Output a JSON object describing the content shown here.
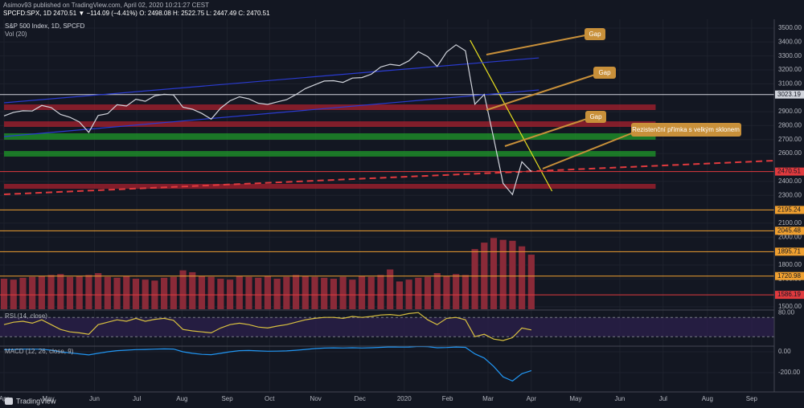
{
  "header": {
    "publisher": "Asimov93 published on TradingView.com, April 02, 2020 10:21:27 CEST",
    "quote": "SPCFD:SPX, 1D 2470.51 ▼ −114.09 (−4.41%) O: 2498.08 H: 2522.75 L: 2447.49 C: 2470.51"
  },
  "footer": {
    "brand": "TradingView"
  },
  "chart_data": {
    "type": "line",
    "title": "S&P 500 Index, 1D, SPCFD",
    "volume_title": "Vol (20)",
    "xlim": [
      -0.43,
      81.8
    ],
    "xticks": [
      {
        "value": 0,
        "label": "Apr"
      },
      {
        "value": 4.7,
        "label": "May"
      },
      {
        "value": 9.6,
        "label": "Jun"
      },
      {
        "value": 14.1,
        "label": "Jul"
      },
      {
        "value": 18.9,
        "label": "Aug"
      },
      {
        "value": 23.7,
        "label": "Sep"
      },
      {
        "value": 28.2,
        "label": "Oct"
      },
      {
        "value": 33.1,
        "label": "Nov"
      },
      {
        "value": 37.8,
        "label": "Dec"
      },
      {
        "value": 42.5,
        "label": "2020"
      },
      {
        "value": 47.1,
        "label": "Feb"
      },
      {
        "value": 51.4,
        "label": "Mar"
      },
      {
        "value": 56,
        "label": "Apr"
      },
      {
        "value": 60.7,
        "label": "May"
      },
      {
        "value": 65.4,
        "label": "Jun"
      },
      {
        "value": 70,
        "label": "Jul"
      },
      {
        "value": 74.7,
        "label": "Aug"
      },
      {
        "value": 79.4,
        "label": "Sep"
      }
    ],
    "ylim": [
      1483,
      3540
    ],
    "yticks": [
      {
        "value": 3500,
        "label": "3500.00"
      },
      {
        "value": 3400,
        "label": "3400.00"
      },
      {
        "value": 3300,
        "label": "3300.00"
      },
      {
        "value": 3200,
        "label": "3200.00"
      },
      {
        "value": 3100,
        "label": "3100.00"
      },
      {
        "value": 2900,
        "label": "2900.00"
      },
      {
        "value": 2800,
        "label": "2800.00"
      },
      {
        "value": 2700,
        "label": "2700.00"
      },
      {
        "value": 2600,
        "label": "2600.00"
      },
      {
        "value": 2400,
        "label": "2400.00"
      },
      {
        "value": 2300,
        "label": "2300.00"
      },
      {
        "value": 2100,
        "label": "2100.00"
      },
      {
        "value": 2000,
        "label": "2000.00"
      },
      {
        "value": 1800,
        "label": "1800.00"
      },
      {
        "value": 1700,
        "label": "1700.00"
      },
      {
        "value": 1500,
        "label": "1500.00"
      }
    ],
    "series": [
      {
        "name": "S&P 500 Index",
        "color": "#d1d4dc",
        "values": [
          2870,
          2895,
          2907,
          2905,
          2945,
          2930,
          2880,
          2860,
          2826,
          2752,
          2873,
          2886,
          2950,
          2941,
          2990,
          2975,
          3014,
          3025,
          3020,
          2932,
          2918,
          2888,
          2847,
          2926,
          2978,
          3007,
          2992,
          2961,
          2952,
          2970,
          2986,
          3023,
          3066,
          3093,
          3120,
          3122,
          3110,
          3141,
          3145,
          3169,
          3221,
          3240,
          3231,
          3265,
          3330,
          3295,
          3225,
          3328,
          3380,
          3337,
          2954,
          3024,
          2711,
          2386,
          2305,
          2541,
          2470
        ]
      }
    ],
    "volume": {
      "color": "#8a2a38",
      "ylim": [
        0,
        31000
      ],
      "values": [
        3300,
        3200,
        3400,
        3500,
        3600,
        3700,
        3800,
        3500,
        3600,
        3700,
        3900,
        3500,
        3400,
        3600,
        3300,
        3200,
        3100,
        3400,
        3500,
        4200,
        4000,
        3600,
        3500,
        3300,
        3200,
        3600,
        3500,
        3400,
        3600,
        3300,
        3500,
        3700,
        3600,
        3500,
        3400,
        3300,
        3500,
        3200,
        3600,
        3500,
        3700,
        4300,
        3000,
        3200,
        3400,
        3500,
        3900,
        3600,
        3800,
        3700,
        6500,
        7200,
        7700,
        7500,
        7400,
        6800,
        5900
      ]
    },
    "levels": [
      {
        "value": 3023.19,
        "label": "3023.19",
        "color": "#d1d4dc"
      },
      {
        "value": 2470.51,
        "label": "2470.51",
        "color": "#e03a3e"
      },
      {
        "value": 2195.24,
        "label": "2195.24",
        "color": "#f0a030"
      },
      {
        "value": 2045.48,
        "label": "2045.48",
        "color": "#f0a030"
      },
      {
        "value": 1895.71,
        "label": "1895.71",
        "color": "#f0a030"
      },
      {
        "value": 1720.98,
        "label": "1720.98",
        "color": "#f0a030"
      },
      {
        "value": 1586.19,
        "label": "1586.19",
        "color": "#e03a3e"
      }
    ],
    "zones": [
      {
        "range": [
          2912,
          2952
        ],
        "color": "#a8202e"
      },
      {
        "range": [
          2791,
          2831
        ],
        "color": "#a8202e"
      },
      {
        "range": [
          2699,
          2745
        ],
        "color": "#1f9a2a"
      },
      {
        "range": [
          2578,
          2618
        ],
        "color": "#1f9a2a"
      },
      {
        "range": [
          2347,
          2382
        ],
        "color": "#a8202e"
      }
    ],
    "zone_end": 69.2,
    "trendlines": [
      {
        "points": [
          [
            49.5,
            3413
          ],
          [
            58.2,
            2330
          ]
        ],
        "color": "#e8e020"
      },
      {
        "points": [
          [
            0,
            2307
          ],
          [
            81.8,
            2549
          ]
        ],
        "color": "#e03a3e",
        "dashed": true
      },
      {
        "points": [
          [
            0,
            2964
          ],
          [
            56.8,
            3286
          ]
        ],
        "color": "#2a3bd0"
      },
      {
        "points": [
          [
            0,
            2722
          ],
          [
            56.8,
            3056
          ]
        ],
        "color": "#2a3bd0"
      }
    ],
    "annotations": [
      "Gap",
      "Gap",
      "Gap",
      "Rezistenční přímka s velkým sklonem"
    ],
    "rsi": {
      "title": "RSI (14, close)",
      "color": "#d8c040",
      "ylim": [
        12,
        82
      ],
      "bands": [
        70,
        30
      ],
      "yticks": [
        {
          "value": 80,
          "label": "80.00"
        }
      ],
      "values": [
        55,
        60,
        62,
        58,
        65,
        55,
        45,
        40,
        38,
        35,
        55,
        60,
        65,
        62,
        68,
        62,
        66,
        68,
        64,
        45,
        42,
        40,
        38,
        48,
        55,
        58,
        55,
        50,
        48,
        52,
        55,
        60,
        65,
        68,
        70,
        70,
        68,
        72,
        70,
        72,
        75,
        76,
        74,
        78,
        80,
        65,
        55,
        68,
        70,
        65,
        30,
        35,
        25,
        22,
        28,
        48,
        44
      ]
    },
    "macd": {
      "title": "MACD (12, 26, close, 9)",
      "color": "#2196f3",
      "ylim": [
        -361,
        38
      ],
      "yticks": [
        {
          "value": 0,
          "label": "0.00"
        },
        {
          "value": -200,
          "label": "-200.00"
        }
      ],
      "values": [
        20,
        22,
        25,
        25,
        24,
        15,
        0,
        -10,
        -20,
        -30,
        -15,
        0,
        10,
        15,
        20,
        22,
        25,
        27,
        26,
        0,
        -15,
        -25,
        -28,
        -15,
        0,
        10,
        12,
        8,
        5,
        6,
        8,
        14,
        22,
        30,
        35,
        37,
        36,
        38,
        36,
        38,
        42,
        46,
        44,
        45,
        50,
        48,
        38,
        40,
        45,
        42,
        -20,
        -60,
        -140,
        -240,
        -280,
        -210,
        -180
      ]
    }
  }
}
